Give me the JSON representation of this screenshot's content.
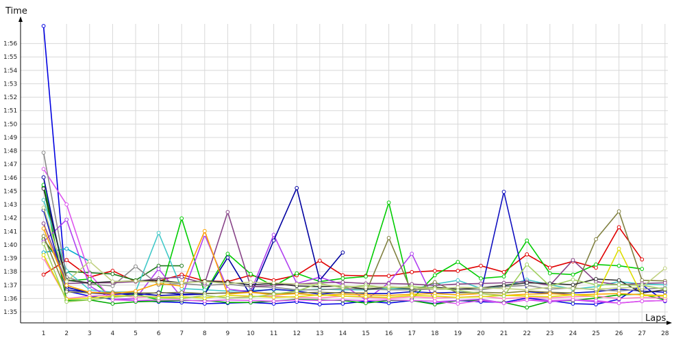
{
  "chart_data": {
    "type": "line",
    "ylabel": "Time",
    "xlabel": "Laps",
    "grid": true,
    "legend": "none",
    "x": [
      1,
      2,
      3,
      4,
      5,
      6,
      7,
      8,
      9,
      10,
      11,
      12,
      13,
      14,
      15,
      16,
      17,
      18,
      19,
      20,
      21,
      22,
      23,
      24,
      25,
      26,
      27,
      28
    ],
    "xlim": [
      0,
      28
    ],
    "ylim": [
      2070,
      2180
    ],
    "y_ticks": [
      {
        "v": 2100,
        "label": "1:35"
      },
      {
        "v": 2101,
        "label": "1:36"
      },
      {
        "v": 2102,
        "label": "1:37"
      },
      {
        "v": 2103,
        "label": "1:38"
      },
      {
        "v": 2104,
        "label": "1:39"
      },
      {
        "v": 2105,
        "label": "1:40"
      },
      {
        "v": 2106,
        "label": "1:41"
      },
      {
        "v": 2107,
        "label": "1:42"
      },
      {
        "v": 2108,
        "label": "1:43"
      },
      {
        "v": 2109,
        "label": "1:45"
      },
      {
        "v": 2110,
        "label": "1:46"
      },
      {
        "v": 2111,
        "label": "1:47"
      },
      {
        "v": 2112,
        "label": "1:48"
      },
      {
        "v": 2113,
        "label": "1:49"
      },
      {
        "v": 2114,
        "label": "1:50"
      },
      {
        "v": 2115,
        "label": "1:51"
      },
      {
        "v": 2116,
        "label": "1:52"
      },
      {
        "v": 2117,
        "label": "1:53"
      },
      {
        "v": 2118,
        "label": "1:54"
      },
      {
        "v": 2119,
        "label": "1:55"
      },
      {
        "v": 2120,
        "label": "1:56"
      }
    ],
    "series": [
      {
        "color": "#e00000",
        "values": [
          100.9,
          103.2,
          100.5,
          101.5,
          99.8,
          99.9,
          100.9,
          99.9,
          99.8,
          100.8,
          100.0,
          100.8,
          103.1,
          100.8,
          100.7,
          100.7,
          101.3,
          101.5,
          101.5,
          102.3,
          101.3,
          104.1,
          102.0,
          103.0,
          102.0,
          108.4,
          103.3,
          null
        ]
      },
      {
        "color": "#0000e0",
        "values": [
          154.0,
          98.3,
          97.5,
          97.0,
          96.8,
          96.6,
          96.5,
          96.3,
          96.4,
          96.5,
          96.3,
          96.6,
          96.2,
          96.3,
          96.7,
          96.4,
          96.8,
          96.3,
          96.8,
          96.6,
          96.5,
          97.2,
          96.8,
          96.3,
          96.2,
          97.0,
          99.3,
          96.7
        ]
      },
      {
        "color": "#00aa00",
        "values": [
          114.7,
          96.8,
          96.9,
          96.3,
          96.6,
          96.7,
          96.8,
          96.8,
          96.5,
          96.5,
          96.7,
          97.0,
          96.9,
          96.8,
          96.4,
          96.8,
          96.8,
          96.2,
          96.8,
          96.8,
          96.5,
          95.7,
          96.7,
          96.8,
          97.2,
          97.7,
          97.8,
          96.9
        ]
      },
      {
        "color": "#00cc00",
        "values": [
          115.1,
          99.9,
          100.2,
          97.3,
          97.8,
          96.9,
          109.8,
          98.0,
          104.2,
          101.0,
          99.1,
          101.1,
          99.8,
          100.3,
          100.6,
          112.3,
          97.0,
          100.8,
          102.9,
          100.3,
          100.6,
          106.3,
          101.1,
          100.9,
          102.5,
          102.3,
          101.8,
          null
        ]
      },
      {
        "color": "#1a7a1a",
        "values": [
          106.5,
          101.4,
          101.2,
          101.0,
          100.0,
          102.3,
          102.3,
          null,
          null,
          null,
          null,
          null,
          null,
          null,
          null,
          null,
          null,
          null,
          null,
          null,
          null,
          null,
          null,
          null,
          null,
          null,
          null,
          null
        ]
      },
      {
        "color": "#00aacc",
        "values": [
          104.4,
          105.0,
          103.0,
          null,
          null,
          null,
          null,
          null,
          null,
          null,
          null,
          null,
          null,
          null,
          null,
          null,
          null,
          null,
          null,
          null,
          null,
          null,
          null,
          null,
          null,
          null,
          null,
          null
        ]
      },
      {
        "color": "#40c8c8",
        "values": [
          112.7,
          101.5,
          98.5,
          98.1,
          98.2,
          107.5,
          98.7,
          98.5,
          98.3,
          98.4,
          98.5,
          98.4,
          98.6,
          98.5,
          98.5,
          98.7,
          98.6,
          99.4,
          100.0,
          98.7,
          99.0,
          100.1,
          99.3,
          98.6,
          99.0,
          99.8,
          99.4,
          99.3
        ]
      },
      {
        "color": "#b040f0",
        "values": [
          106.1,
          109.6,
          99.1,
          97.0,
          97.1,
          101.8,
          97.3,
          107.2,
          98.6,
          98.2,
          107.2,
          99.5,
          100.5,
          99.3,
          96.9,
          99.6,
          104.2,
          96.6,
          96.8,
          97.0,
          96.4,
          96.9,
          96.6,
          96.9,
          96.6,
          96.4,
          96.7,
          96.8
        ]
      },
      {
        "color": "#dd55ee",
        "values": [
          117.6,
          112.0,
          101.0,
          96.9,
          96.8,
          96.9,
          96.9,
          96.7,
          96.9,
          96.8,
          96.7,
          96.9,
          96.8,
          96.9,
          96.8,
          96.9,
          96.8,
          96.7,
          96.3,
          96.8,
          96.4,
          96.9,
          96.8,
          96.9,
          96.8,
          96.4,
          96.7,
          96.8
        ]
      },
      {
        "color": "#0000a0",
        "values": [
          116.3,
          98.9,
          98.0,
          97.8,
          97.9,
          97.6,
          97.7,
          97.8,
          103.6,
          97.6,
          106.3,
          114.6,
          100.0,
          104.4,
          null,
          null,
          null,
          null,
          null,
          null,
          null,
          null,
          null,
          null,
          null,
          null,
          null,
          null
        ]
      },
      {
        "color": "#1010c0",
        "values": [
          111.1,
          98.5,
          98.1,
          98.0,
          97.6,
          98.1,
          97.8,
          97.9,
          98.0,
          98.2,
          98.6,
          98.3,
          97.8,
          98.1,
          97.9,
          97.9,
          98.2,
          98.0,
          98.1,
          98.0,
          114.0,
          98.2,
          97.9,
          98.0,
          98.2,
          98.6,
          98.3,
          98.1
        ]
      },
      {
        "color": "#808040",
        "values": [
          107.0,
          98.2,
          98.0,
          98.1,
          98.0,
          98.0,
          98.1,
          97.9,
          98.0,
          98.1,
          97.9,
          98.0,
          98.1,
          98.0,
          98.0,
          106.7,
          98.1,
          99.7,
          98.0,
          98.1,
          98.0,
          98.3,
          98.1,
          98.0,
          106.5,
          110.9,
          100.0,
          99.9
        ]
      },
      {
        "color": "#8a8a8a",
        "values": [
          120.2,
          100.5,
          99.4,
          99.1,
          102.2,
          99.3,
          99.5,
          99.2,
          99.4,
          99.0,
          98.9,
          98.5,
          98.5,
          98.7,
          98.6,
          98.5,
          98.5,
          98.6,
          98.6,
          98.5,
          99.0,
          99.2,
          98.6,
          98.8,
          98.5,
          98.3,
          98.6,
          98.8
        ]
      },
      {
        "color": "#884488",
        "values": [
          109.0,
          99.5,
          99.6,
          99.6,
          99.8,
          100.3,
          100.5,
          99.5,
          110.8,
          99.0,
          99.2,
          99.4,
          99.6,
          99.7,
          99.5,
          99.5,
          99.4,
          99.2,
          99.4,
          99.5,
          99.6,
          99.8,
          99.2,
          103.2,
          99.8,
          99.3,
          99.5,
          99.6
        ]
      },
      {
        "color": "#303030",
        "values": [
          114.5,
          100.0,
          99.6,
          99.8,
          99.9,
          100.0,
          99.6,
          99.9,
          99.7,
          99.3,
          99.5,
          99.1,
          99.0,
          99.1,
          98.6,
          98.9,
          98.7,
          98.9,
          98.6,
          98.8,
          99.2,
          99.6,
          99.5,
          99.3,
          100.2,
          100.0,
          98.0,
          98.5
        ]
      },
      {
        "color": "#ffa500",
        "values": [
          108.2,
          99.2,
          98.1,
          97.9,
          98.3,
          99.5,
          99.1,
          107.8,
          97.8,
          98.1,
          97.7,
          97.9,
          97.6,
          97.8,
          97.7,
          97.6,
          97.8,
          97.9,
          97.7,
          97.9,
          97.6,
          97.8,
          97.9,
          97.7,
          97.8,
          97.9,
          97.7,
          97.6
        ]
      },
      {
        "color": "#ff80c0",
        "values": [
          103.5,
          97.1,
          97.5,
          97.7,
          97.3,
          97.4,
          97.1,
          97.6,
          97.2,
          97.4,
          97.5,
          97.3,
          97.2,
          97.5,
          97.3,
          97.1,
          97.4,
          97.2,
          97.3,
          97.5,
          97.1,
          97.3,
          97.2,
          97.4,
          97.5,
          97.1,
          97.3,
          97.2
        ]
      },
      {
        "color": "#dddd00",
        "values": [
          104.0,
          97.0,
          97.2,
          97.5,
          97.6,
          97.3,
          97.4,
          97.2,
          97.6,
          97.5,
          97.3,
          97.4,
          97.7,
          97.5,
          97.4,
          97.3,
          97.6,
          97.5,
          97.3,
          97.4,
          97.6,
          97.5,
          97.4,
          97.7,
          97.5,
          105.0,
          97.6,
          97.5
        ]
      },
      {
        "color": "#a0d060",
        "values": [
          105.8,
          96.6,
          96.9,
          97.3,
          97.6,
          97.2,
          97.1,
          97.6,
          97.2,
          97.3,
          97.8,
          98.3,
          99.5,
          98.8,
          99.2,
          98.8,
          99.0,
          98.8,
          98.4,
          97.9,
          97.5,
          102.5,
          99.1,
          100.1,
          99.3,
          99.3,
          99.2,
          98.6
        ]
      },
      {
        "color": "#c0d080",
        "values": [
          111.5,
          99.8,
          103.0,
          99.8,
          99.9,
          99.7,
          99.6,
          99.8,
          99.5,
          99.7,
          99.6,
          99.4,
          99.3,
          99.1,
          98.9,
          99.0,
          98.8,
          98.6,
          98.9,
          98.8,
          98.7,
          98.5,
          98.9,
          98.7,
          98.6,
          98.8,
          98.9,
          101.9
        ]
      }
    ]
  }
}
